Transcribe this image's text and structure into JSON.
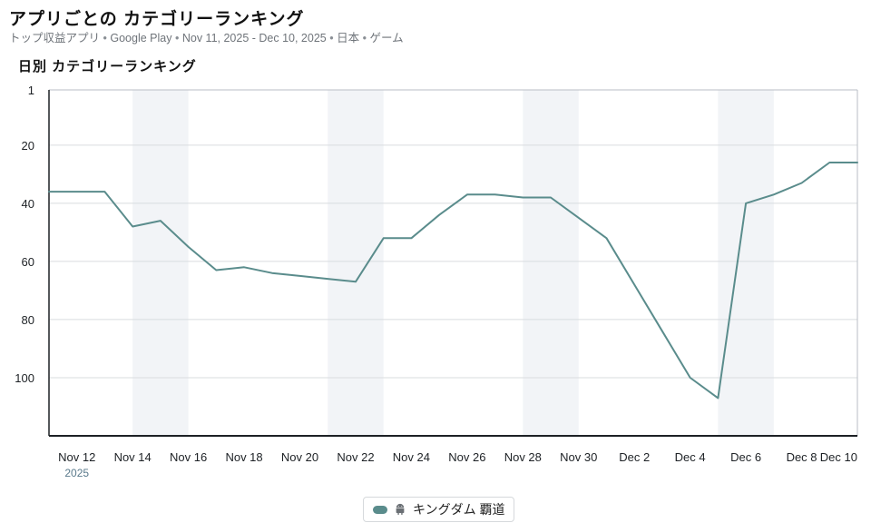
{
  "header": {
    "title": "アプリごとの カテゴリーランキング",
    "subtitle_parts": [
      "トップ収益アプリ",
      "Google Play",
      "Nov 11, 2025 - Dec 10, 2025",
      "日本",
      "ゲーム"
    ],
    "subtitle_sep": "•"
  },
  "section": {
    "title": "日別 カテゴリーランキング"
  },
  "colors": {
    "line": "#5a8c8c",
    "weekend_band": "#f2f4f7",
    "grid": "#d9dcdf",
    "axis": "#1d2125"
  },
  "chart_data": {
    "type": "line",
    "title": "日別 カテゴリーランキング",
    "y_inverted": true,
    "ylim": [
      1,
      120
    ],
    "y_ticks": [
      1,
      20,
      40,
      60,
      80,
      100
    ],
    "x_range": [
      "2025-11-11",
      "2025-12-10"
    ],
    "x_ticks": [
      {
        "date": "2025-11-12",
        "label": "Nov 12",
        "sublabel": "2025"
      },
      {
        "date": "2025-11-14",
        "label": "Nov 14"
      },
      {
        "date": "2025-11-16",
        "label": "Nov 16"
      },
      {
        "date": "2025-11-18",
        "label": "Nov 18"
      },
      {
        "date": "2025-11-20",
        "label": "Nov 20"
      },
      {
        "date": "2025-11-22",
        "label": "Nov 22"
      },
      {
        "date": "2025-11-24",
        "label": "Nov 24"
      },
      {
        "date": "2025-11-26",
        "label": "Nov 26"
      },
      {
        "date": "2025-11-28",
        "label": "Nov 28"
      },
      {
        "date": "2025-11-30",
        "label": "Nov 30"
      },
      {
        "date": "2025-12-02",
        "label": "Dec 2"
      },
      {
        "date": "2025-12-04",
        "label": "Dec 4"
      },
      {
        "date": "2025-12-06",
        "label": "Dec 6"
      },
      {
        "date": "2025-12-08",
        "label": "Dec 8"
      },
      {
        "date": "2025-12-10",
        "label": "Dec 10"
      }
    ],
    "weekends": [
      [
        "2025-11-14",
        "2025-11-16"
      ],
      [
        "2025-11-21",
        "2025-11-23"
      ],
      [
        "2025-11-28",
        "2025-11-30"
      ],
      [
        "2025-12-05",
        "2025-12-07"
      ]
    ],
    "series": [
      {
        "name": "キングダム 覇道",
        "platform": "android",
        "points": [
          [
            "2025-11-11",
            36
          ],
          [
            "2025-11-12",
            36
          ],
          [
            "2025-11-13",
            36
          ],
          [
            "2025-11-14",
            48
          ],
          [
            "2025-11-15",
            46
          ],
          [
            "2025-11-16",
            55
          ],
          [
            "2025-11-17",
            63
          ],
          [
            "2025-11-18",
            62
          ],
          [
            "2025-11-19",
            64
          ],
          [
            "2025-11-20",
            65
          ],
          [
            "2025-11-21",
            66
          ],
          [
            "2025-11-22",
            67
          ],
          [
            "2025-11-23",
            52
          ],
          [
            "2025-11-24",
            52
          ],
          [
            "2025-11-25",
            44
          ],
          [
            "2025-11-26",
            37
          ],
          [
            "2025-11-27",
            37
          ],
          [
            "2025-11-28",
            38
          ],
          [
            "2025-11-29",
            38
          ],
          [
            "2025-11-30",
            45
          ],
          [
            "2025-12-01",
            52
          ],
          [
            "2025-12-02",
            68
          ],
          [
            "2025-12-03",
            84
          ],
          [
            "2025-12-04",
            100
          ],
          [
            "2025-12-05",
            107
          ],
          [
            "2025-12-06",
            40
          ],
          [
            "2025-12-07",
            37
          ],
          [
            "2025-12-08",
            33
          ],
          [
            "2025-12-09",
            26
          ],
          [
            "2025-12-10",
            26
          ]
        ]
      }
    ]
  }
}
